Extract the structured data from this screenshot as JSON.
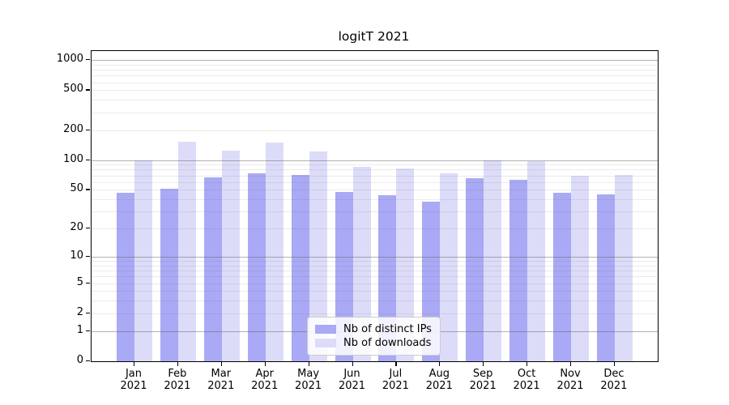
{
  "title": "logitT 2021",
  "colors": {
    "distinct_ips_bar": "#a9a9f5",
    "downloads_bar": "#dcdcf9",
    "axis": "#000000",
    "grid_major": "rgba(100,100,100,0.50)",
    "grid_minor": "rgba(100,100,100,0.13)"
  },
  "legend": {
    "items": [
      {
        "label": "Nb of distinct IPs",
        "color": "#a9a9f5"
      },
      {
        "label": "Nb of downloads",
        "color": "#dcdcf9"
      }
    ]
  },
  "chart_data": {
    "type": "bar",
    "title": "logitT 2021",
    "scale": "log1p",
    "categories": [
      "Jan 2021",
      "Feb 2021",
      "Mar 2021",
      "Apr 2021",
      "May 2021",
      "Jun 2021",
      "Jul 2021",
      "Aug 2021",
      "Sep 2021",
      "Oct 2021",
      "Nov 2021",
      "Dec 2021"
    ],
    "series": [
      {
        "name": "Nb of distinct IPs",
        "color": "#a9a9f5",
        "values": [
          47,
          51,
          67,
          74,
          71,
          48,
          44,
          38,
          66,
          63,
          47,
          45
        ]
      },
      {
        "name": "Nb of downloads",
        "color": "#dcdcf9",
        "values": [
          100,
          153,
          124,
          151,
          121,
          86,
          83,
          74,
          100,
          97,
          70,
          71
        ]
      }
    ],
    "xlabel": "",
    "ylabel": "",
    "ylim": [
      0,
      1230
    ],
    "y_ticks": [
      1000,
      500,
      200,
      100,
      50,
      20,
      10,
      5,
      2,
      1,
      0
    ],
    "y_ticks_emphasized": [
      1000,
      100,
      10,
      1
    ],
    "y_minor_gridlines": [
      900,
      800,
      700,
      600,
      400,
      300,
      90,
      80,
      70,
      60,
      40,
      30,
      9,
      8,
      7,
      6,
      4,
      3
    ],
    "grid": true,
    "legend_position": "lower-center"
  }
}
